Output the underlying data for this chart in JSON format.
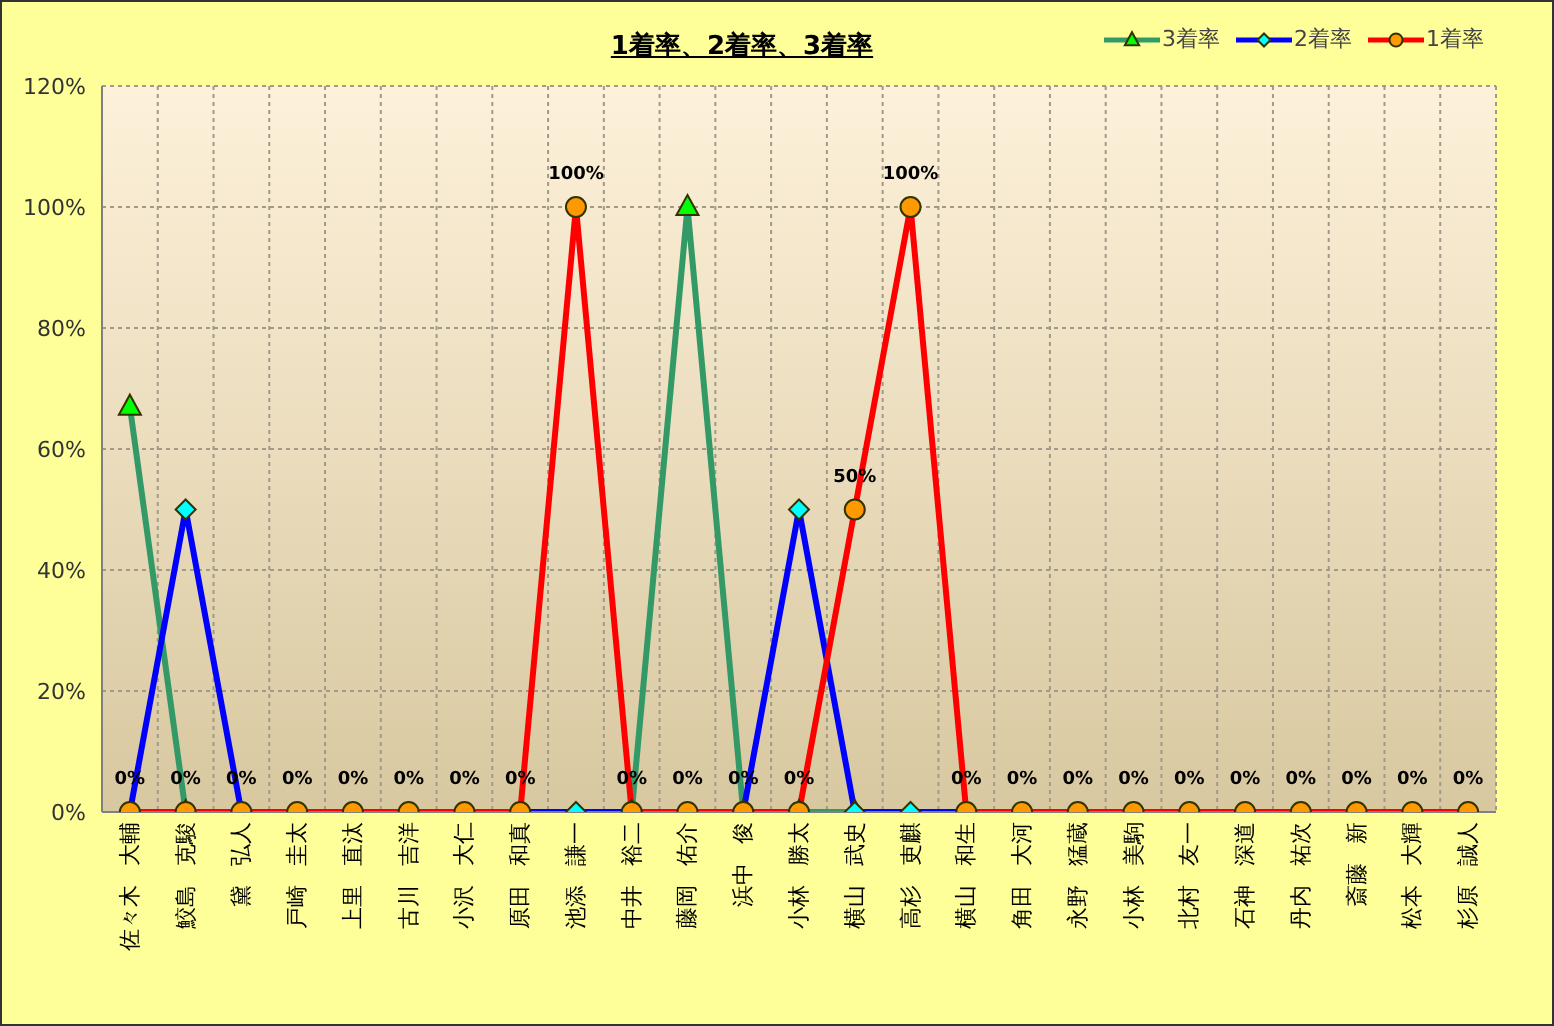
{
  "chart_data": {
    "type": "line",
    "title": "1着率、2着率、3着率",
    "categories": [
      "佐々木 大輔",
      "鮫島 克駿",
      "黛 弘人",
      "戸崎 圭太",
      "上里 直汰",
      "古川 吉洋",
      "小沢 大仁",
      "原田 和真",
      "池添 謙一",
      "中井 裕二",
      "藤岡 佑介",
      "浜中 俊",
      "小林 勝太",
      "横山 武史",
      "高杉 吏麒",
      "横山 和生",
      "角田 大河",
      "永野 猛蔵",
      "小林 美駒",
      "北村 友一",
      "石神 深道",
      "丹内 祐次",
      "斎藤 新",
      "松本 大輝",
      "杉原 誠人"
    ],
    "series": [
      {
        "name": "3着率",
        "color": "#339966",
        "marker": "triangle",
        "values": [
          67,
          0,
          null,
          null,
          null,
          null,
          null,
          null,
          null,
          0,
          100,
          0,
          0,
          0,
          null,
          null,
          null,
          null,
          null,
          null,
          null,
          null,
          null,
          null,
          null
        ]
      },
      {
        "name": "2着率",
        "color": "#0000ff",
        "marker": "diamond",
        "values": [
          0,
          50,
          0,
          null,
          null,
          null,
          null,
          0,
          0,
          0,
          null,
          0,
          50,
          0,
          0,
          0,
          null,
          null,
          null,
          null,
          null,
          null,
          null,
          null,
          null
        ]
      },
      {
        "name": "1着率",
        "color": "#ff0000",
        "marker": "circle",
        "values": [
          0,
          0,
          0,
          0,
          0,
          0,
          0,
          0,
          100,
          0,
          0,
          0,
          0,
          50,
          100,
          0,
          0,
          0,
          0,
          0,
          0,
          0,
          0,
          0,
          0
        ],
        "value_labels": [
          "0%",
          "0%",
          "0%",
          "0%",
          "0%",
          "0%",
          "0%",
          "0%",
          "100%",
          "0%",
          "0%",
          "0%",
          "0%",
          "50%",
          "100%",
          "0%",
          "0%",
          "0%",
          "0%",
          "0%",
          "0%",
          "0%",
          "0%",
          "0%",
          "0%"
        ]
      }
    ],
    "ylim": [
      0,
      120
    ],
    "yticks": [
      {
        "value": 0,
        "label": "0%"
      },
      {
        "value": 20,
        "label": "20%"
      },
      {
        "value": 40,
        "label": "40%"
      },
      {
        "value": 60,
        "label": "60%"
      },
      {
        "value": 80,
        "label": "80%"
      },
      {
        "value": 100,
        "label": "100%"
      },
      {
        "value": 120,
        "label": "120%"
      }
    ],
    "grid": true,
    "legend": "top right"
  }
}
